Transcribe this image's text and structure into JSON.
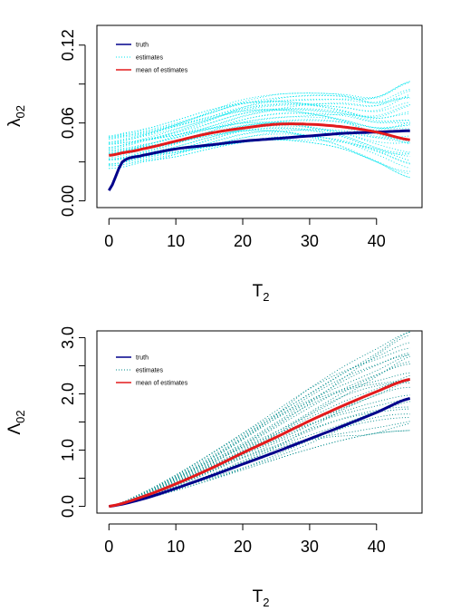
{
  "colors": {
    "truth": "#00008b",
    "estimates_top": "#00e5ee",
    "estimates_bottom": "#008b8b",
    "mean": "#e31a1c",
    "axis": "#000000"
  },
  "chart_data": [
    {
      "type": "line",
      "ylabel_main": "λ",
      "ylabel_sub": "02",
      "xlabel_main": "T",
      "xlabel_sub": "2",
      "xlim": [
        0,
        45
      ],
      "ylim": [
        0,
        0.13
      ],
      "x_ticks": [
        "0",
        "10",
        "20",
        "30",
        "40"
      ],
      "y_ticks": [
        "0.00",
        "0.06",
        "0.12"
      ],
      "y_tick_values": [
        0,
        0.06,
        0.12
      ],
      "x_tick_values": [
        0,
        10,
        20,
        30,
        40
      ],
      "legend": {
        "position": "top-left",
        "entries": [
          "truth",
          "estimates",
          "mean of estimates"
        ]
      },
      "x": [
        0,
        2,
        5,
        10,
        15,
        20,
        25,
        30,
        35,
        40,
        45
      ],
      "series": [
        {
          "name": "truth",
          "style": "solid",
          "values": [
            0.008,
            0.03,
            0.035,
            0.04,
            0.043,
            0.046,
            0.048,
            0.05,
            0.052,
            0.053,
            0.054
          ]
        },
        {
          "name": "mean of estimates",
          "style": "solid",
          "values": [
            0.035,
            0.037,
            0.04,
            0.046,
            0.052,
            0.056,
            0.059,
            0.059,
            0.057,
            0.053,
            0.047
          ]
        }
      ],
      "estimates_band": {
        "name": "estimates",
        "lower": [
          0.025,
          0.026,
          0.03,
          0.034,
          0.04,
          0.045,
          0.047,
          0.045,
          0.04,
          0.03,
          0.018
        ],
        "upper": [
          0.05,
          0.052,
          0.055,
          0.062,
          0.07,
          0.078,
          0.082,
          0.083,
          0.082,
          0.08,
          0.092
        ],
        "count": 40
      }
    },
    {
      "type": "line",
      "ylabel_main": "Λ",
      "ylabel_sub": "02",
      "xlabel_main": "T",
      "xlabel_sub": "2",
      "xlim": [
        0,
        45
      ],
      "ylim": [
        0,
        3.0
      ],
      "x_ticks": [
        "0",
        "10",
        "20",
        "30",
        "40"
      ],
      "y_ticks": [
        "0.0",
        "1.0",
        "2.0",
        "3.0"
      ],
      "y_tick_values": [
        0,
        1.0,
        2.0,
        3.0
      ],
      "x_tick_values": [
        0,
        10,
        20,
        30,
        40
      ],
      "legend": {
        "position": "top-left",
        "entries": [
          "truth",
          "estimates",
          "mean of estimates"
        ]
      },
      "x": [
        0,
        5,
        10,
        15,
        20,
        25,
        30,
        35,
        40,
        45
      ],
      "series": [
        {
          "name": "truth",
          "style": "solid",
          "values": [
            0,
            0.13,
            0.32,
            0.53,
            0.75,
            0.97,
            1.2,
            1.43,
            1.67,
            1.92
          ]
        },
        {
          "name": "mean of estimates",
          "style": "solid",
          "values": [
            0,
            0.17,
            0.4,
            0.66,
            0.95,
            1.23,
            1.52,
            1.79,
            2.04,
            2.26
          ]
        }
      ],
      "estimates_band": {
        "name": "estimates",
        "lower": [
          0,
          0.12,
          0.28,
          0.46,
          0.65,
          0.84,
          1.02,
          1.18,
          1.3,
          1.35
        ],
        "upper": [
          0,
          0.24,
          0.56,
          0.92,
          1.3,
          1.7,
          2.1,
          2.48,
          2.8,
          3.1
        ],
        "count": 30
      }
    }
  ]
}
